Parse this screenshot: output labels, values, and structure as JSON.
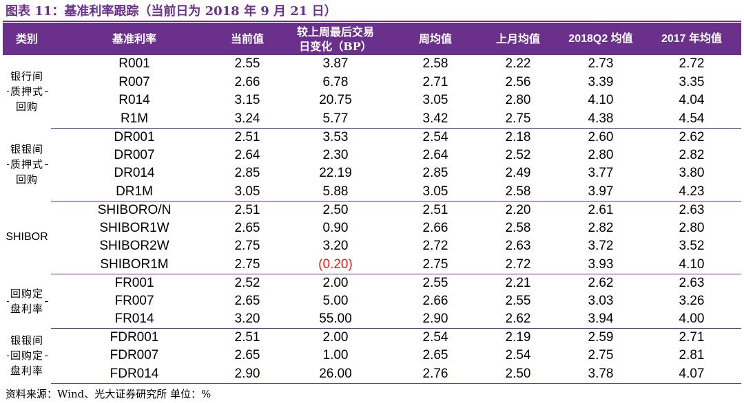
{
  "title": "图表 11：基准利率跟踪（当前日为 2018 年 9 月 21 日）",
  "columns": [
    "类别",
    "基准利率",
    "当前值",
    "较上周最后交易日变化（BP）",
    "周均值",
    "上月均值",
    "2018Q2 均值",
    "2017 年均值"
  ],
  "header": {
    "c0": "类别",
    "c1": "基准利率",
    "c2": "当前值",
    "c3_line1": "较上周最后交易",
    "c3_line2": "日变化（BP）",
    "c4": "周均值",
    "c5": "上月均值",
    "c6": "2018Q2 均值",
    "c7": "2017 年均值"
  },
  "groups": [
    {
      "category": "银行间\n质押式\n回购",
      "rows": [
        {
          "rate": "R001",
          "current": "2.55",
          "change": "3.87",
          "week_avg": "2.58",
          "last_month_avg": "2.22",
          "q2_avg": "2.73",
          "y2017_avg": "2.72"
        },
        {
          "rate": "R007",
          "current": "2.66",
          "change": "6.78",
          "week_avg": "2.71",
          "last_month_avg": "2.56",
          "q2_avg": "3.39",
          "y2017_avg": "3.35"
        },
        {
          "rate": "R014",
          "current": "3.15",
          "change": "20.75",
          "week_avg": "3.05",
          "last_month_avg": "2.80",
          "q2_avg": "4.10",
          "y2017_avg": "4.04"
        },
        {
          "rate": "R1M",
          "current": "3.24",
          "change": "5.77",
          "week_avg": "3.42",
          "last_month_avg": "2.75",
          "q2_avg": "4.38",
          "y2017_avg": "4.54"
        }
      ]
    },
    {
      "category": "银银间\n质押式\n回购",
      "rows": [
        {
          "rate": "DR001",
          "current": "2.51",
          "change": "3.53",
          "week_avg": "2.54",
          "last_month_avg": "2.18",
          "q2_avg": "2.60",
          "y2017_avg": "2.62"
        },
        {
          "rate": "DR007",
          "current": "2.64",
          "change": "2.30",
          "week_avg": "2.64",
          "last_month_avg": "2.52",
          "q2_avg": "2.80",
          "y2017_avg": "2.82"
        },
        {
          "rate": "DR014",
          "current": "2.85",
          "change": "22.19",
          "week_avg": "2.85",
          "last_month_avg": "2.49",
          "q2_avg": "3.77",
          "y2017_avg": "3.80"
        },
        {
          "rate": "DR1M",
          "current": "3.05",
          "change": "5.88",
          "week_avg": "3.05",
          "last_month_avg": "2.58",
          "q2_avg": "3.97",
          "y2017_avg": "4.23"
        }
      ]
    },
    {
      "category": "SHIBOR",
      "rows": [
        {
          "rate": "SHIBORO/N",
          "current": "2.51",
          "change": "2.50",
          "week_avg": "2.51",
          "last_month_avg": "2.20",
          "q2_avg": "2.61",
          "y2017_avg": "2.63"
        },
        {
          "rate": "SHIBOR1W",
          "current": "2.65",
          "change": "0.90",
          "week_avg": "2.66",
          "last_month_avg": "2.58",
          "q2_avg": "2.82",
          "y2017_avg": "2.80"
        },
        {
          "rate": "SHIBOR2W",
          "current": "2.75",
          "change": "3.20",
          "week_avg": "2.72",
          "last_month_avg": "2.63",
          "q2_avg": "3.72",
          "y2017_avg": "3.52"
        },
        {
          "rate": "SHIBOR1M",
          "current": "2.75",
          "change": "(0.20)",
          "week_avg": "2.75",
          "last_month_avg": "2.72",
          "q2_avg": "3.93",
          "y2017_avg": "4.10"
        }
      ]
    },
    {
      "category": "回购定\n盘利率",
      "rows": [
        {
          "rate": "FR001",
          "current": "2.52",
          "change": "2.00",
          "week_avg": "2.55",
          "last_month_avg": "2.21",
          "q2_avg": "2.62",
          "y2017_avg": "2.63"
        },
        {
          "rate": "FR007",
          "current": "2.65",
          "change": "5.00",
          "week_avg": "2.66",
          "last_month_avg": "2.55",
          "q2_avg": "3.03",
          "y2017_avg": "3.26"
        },
        {
          "rate": "FR014",
          "current": "3.20",
          "change": "55.00",
          "week_avg": "2.90",
          "last_month_avg": "2.62",
          "q2_avg": "3.94",
          "y2017_avg": "4.00"
        }
      ]
    },
    {
      "category": "银银间\n回购定\n盘利率",
      "rows": [
        {
          "rate": "FDR001",
          "current": "2.51",
          "change": "2.00",
          "week_avg": "2.54",
          "last_month_avg": "2.19",
          "q2_avg": "2.59",
          "y2017_avg": "2.71"
        },
        {
          "rate": "FDR007",
          "current": "2.65",
          "change": "1.00",
          "week_avg": "2.65",
          "last_month_avg": "2.54",
          "q2_avg": "2.75",
          "y2017_avg": "2.81"
        },
        {
          "rate": "FDR014",
          "current": "2.90",
          "change": "26.00",
          "week_avg": "2.76",
          "last_month_avg": "2.50",
          "q2_avg": "3.78",
          "y2017_avg": "4.07"
        }
      ]
    }
  ],
  "source": "资料来源：Wind、光大证券研究所 单位：%",
  "colors": {
    "header_bg": "#6b2f8c",
    "title": "#6b2f8c",
    "negative": "#e0201b"
  }
}
